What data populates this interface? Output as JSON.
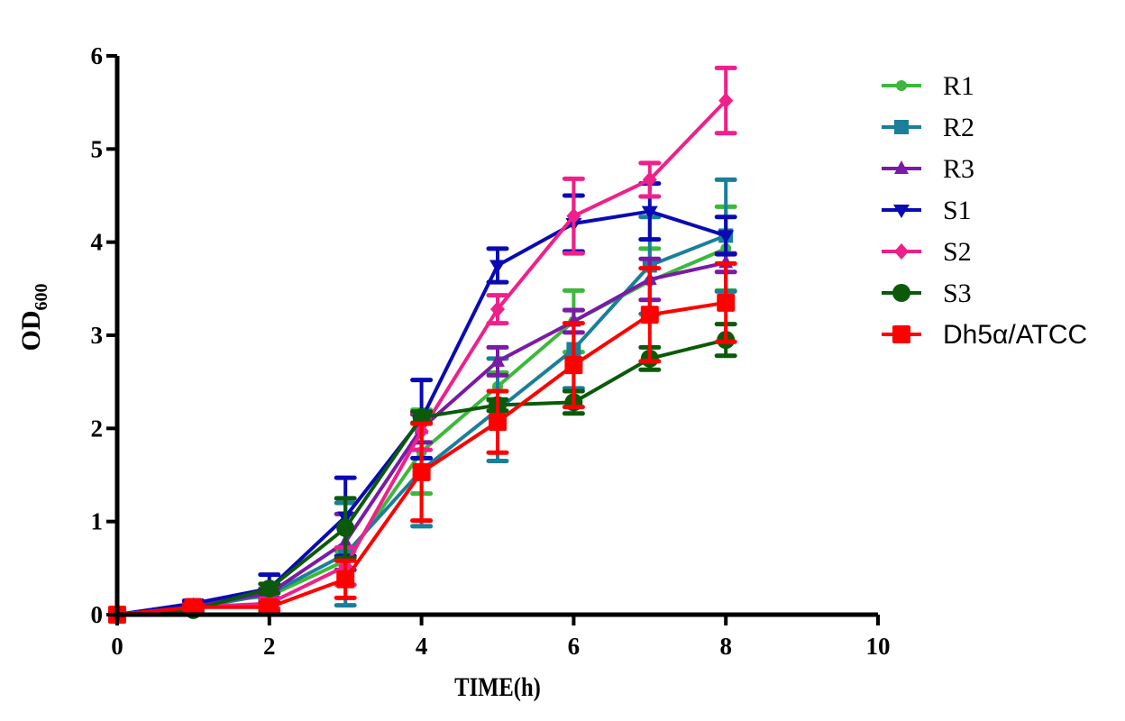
{
  "chart_data": {
    "type": "line",
    "title": "",
    "xlabel": "TIME(h)",
    "ylabel": "OD",
    "ylabel_subscript": "600",
    "xlim": [
      0,
      10
    ],
    "ylim": [
      0,
      6
    ],
    "xticks": [
      0,
      2,
      4,
      6,
      8,
      10
    ],
    "yticks": [
      0,
      1,
      2,
      3,
      4,
      5,
      6
    ],
    "grid": false,
    "legend_position": "top-right",
    "x": [
      0,
      1,
      2,
      3,
      4,
      5,
      6,
      7,
      8
    ],
    "series": [
      {
        "name": "R1",
        "color": "#3cb83c",
        "marker": "circle-small",
        "values": [
          0.0,
          0.12,
          0.2,
          0.58,
          1.75,
          2.45,
          3.15,
          3.58,
          3.93
        ],
        "errors": [
          0.0,
          0.03,
          0.05,
          0.1,
          0.45,
          0.15,
          0.33,
          0.35,
          0.45
        ]
      },
      {
        "name": "R2",
        "color": "#1a7f99",
        "marker": "square",
        "values": [
          0.0,
          0.07,
          0.22,
          0.65,
          1.55,
          2.2,
          2.85,
          3.75,
          4.07
        ],
        "errors": [
          0.0,
          0.03,
          0.05,
          0.55,
          0.6,
          0.55,
          0.42,
          0.52,
          0.6
        ]
      },
      {
        "name": "R3",
        "color": "#7a1aa6",
        "marker": "triangle-up",
        "values": [
          0.0,
          0.1,
          0.23,
          0.78,
          2.0,
          2.72,
          3.15,
          3.6,
          3.78
        ],
        "errors": [
          0.0,
          0.03,
          0.05,
          0.3,
          0.15,
          0.15,
          0.12,
          0.22,
          0.1
        ]
      },
      {
        "name": "S1",
        "color": "#0a0ab4",
        "marker": "triangle-down",
        "values": [
          0.0,
          0.12,
          0.28,
          1.05,
          2.1,
          3.75,
          4.2,
          4.33,
          4.07
        ],
        "errors": [
          0.0,
          0.03,
          0.15,
          0.42,
          0.42,
          0.18,
          0.3,
          0.3,
          0.2
        ]
      },
      {
        "name": "S2",
        "color": "#f0208a",
        "marker": "diamond",
        "values": [
          0.0,
          0.08,
          0.12,
          0.52,
          1.97,
          3.28,
          4.28,
          4.67,
          5.52
        ],
        "errors": [
          0.0,
          0.02,
          0.05,
          0.2,
          0.2,
          0.15,
          0.4,
          0.18,
          0.35
        ]
      },
      {
        "name": "S3",
        "color": "#0a5a0a",
        "marker": "circle",
        "values": [
          0.0,
          0.05,
          0.28,
          0.93,
          2.12,
          2.25,
          2.28,
          2.75,
          2.95
        ],
        "errors": [
          0.0,
          0.03,
          0.05,
          0.32,
          0.06,
          0.06,
          0.12,
          0.12,
          0.17
        ]
      },
      {
        "name": "Dh5α/ATCC",
        "color": "#ff0000",
        "marker": "square-large",
        "values": [
          0.0,
          0.08,
          0.08,
          0.38,
          1.53,
          2.07,
          2.68,
          3.22,
          3.35
        ],
        "errors": [
          0.0,
          0.03,
          0.04,
          0.2,
          0.52,
          0.33,
          0.45,
          0.5,
          0.42
        ]
      }
    ]
  }
}
